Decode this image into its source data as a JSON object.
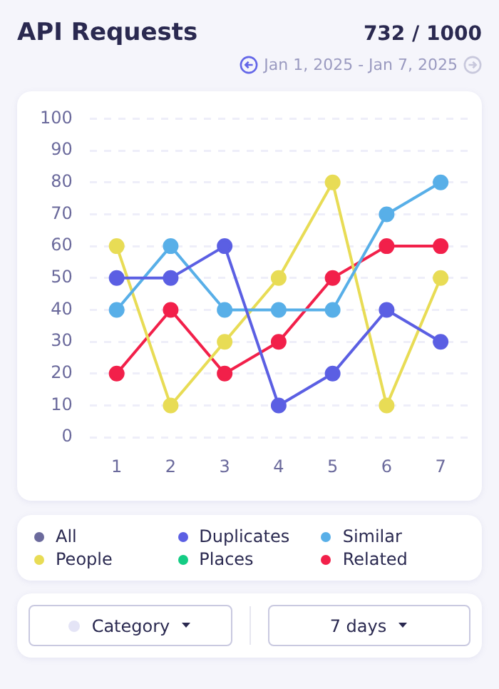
{
  "chart_data": {
    "type": "line",
    "title": "API Requests",
    "subtitle": "Jan 1, 2025 - Jan 7, 2025",
    "annotations": [
      "732 / 1000",
      "Category",
      "7 days"
    ],
    "categories": [
      "1",
      "2",
      "3",
      "4",
      "5",
      "6",
      "7"
    ],
    "series": [
      {
        "name": "All",
        "color": "#6b6a9c",
        "values": [
          null,
          null,
          null,
          null,
          null,
          null,
          null
        ]
      },
      {
        "name": "Duplicates",
        "color": "#5b5fe3",
        "values": [
          50,
          50,
          60,
          10,
          20,
          40,
          30
        ]
      },
      {
        "name": "Similar",
        "color": "#58afe8",
        "values": [
          40,
          60,
          40,
          40,
          40,
          70,
          80
        ]
      },
      {
        "name": "People",
        "color": "#e8dc55",
        "values": [
          60,
          10,
          30,
          50,
          80,
          10,
          50
        ]
      },
      {
        "name": "Places",
        "color": "#14cc84",
        "values": [
          null,
          null,
          null,
          null,
          null,
          null,
          null
        ]
      },
      {
        "name": "Related",
        "color": "#f2204a",
        "values": [
          20,
          40,
          20,
          30,
          50,
          60,
          60
        ]
      }
    ],
    "ylim": [
      0,
      100
    ],
    "yticks": [
      0,
      10,
      20,
      30,
      40,
      50,
      60,
      70,
      80,
      90,
      100
    ],
    "grid": "y",
    "legend": "bottom",
    "marker": "circle",
    "line_style": "solid"
  }
}
